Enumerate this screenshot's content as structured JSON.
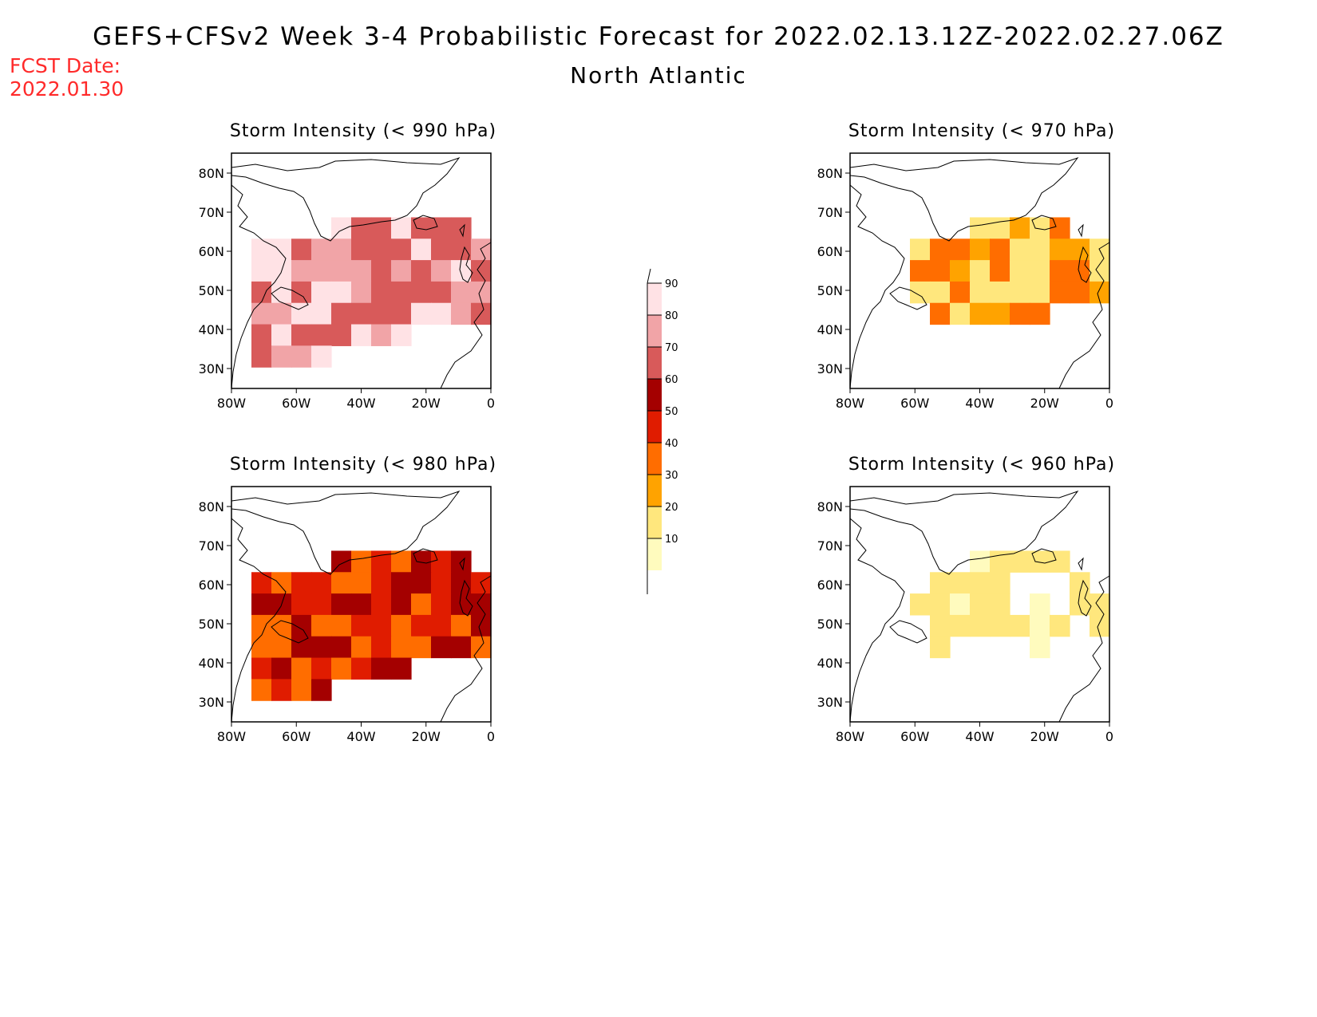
{
  "header": {
    "title": "GEFS+CFSv2 Week 3-4 Probabilistic Forecast for 2022.02.13.12Z-2022.02.27.06Z",
    "region": "North Atlantic",
    "fcst_label": "FCST Date:",
    "fcst_date": "2022.01.30"
  },
  "panels": [
    {
      "title": "Storm Intensity (< 990 hPa)"
    },
    {
      "title": "Storm Intensity (< 970 hPa)"
    },
    {
      "title": "Storm Intensity (< 980 hPa)"
    },
    {
      "title": "Storm Intensity (< 960 hPa)"
    }
  ],
  "axes": {
    "lon_ticks": [
      "80W",
      "60W",
      "40W",
      "20W",
      "0"
    ],
    "lat_ticks": [
      "80N",
      "70N",
      "60N",
      "50N",
      "40N",
      "30N"
    ]
  },
  "colorbar": {
    "levels": [
      "10",
      "20",
      "30",
      "40",
      "50",
      "60",
      "70",
      "80",
      "90"
    ],
    "colors": [
      "#fffbbe",
      "#ffe77d",
      "#ffa300",
      "#ff6d00",
      "#e01c00",
      "#a40000",
      "#d85a5a",
      "#f1a4a7",
      "#ffe2e5"
    ]
  },
  "chart_data": {
    "type": "heatmap",
    "map_extent": {
      "lon": [
        -80,
        0
      ],
      "lat": [
        25,
        85
      ]
    },
    "panels": [
      {
        "threshold_hpa": 990,
        "dominant_range": "60-90"
      },
      {
        "threshold_hpa": 970,
        "dominant_range": "10-40"
      },
      {
        "threshold_hpa": 980,
        "dominant_range": "30-60"
      },
      {
        "threshold_hpa": 960,
        "dominant_range": "10-20"
      }
    ]
  }
}
